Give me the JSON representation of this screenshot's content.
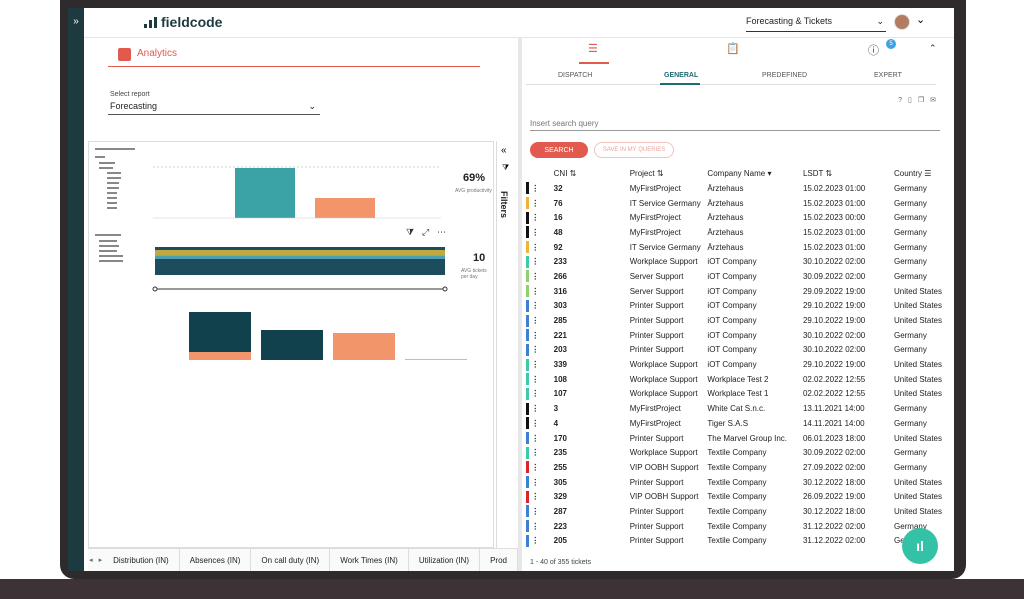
{
  "app": {
    "logo": "fieldcode",
    "rail_toggle": "»",
    "top_select": "Forecasting & Tickets"
  },
  "analytics": {
    "title": "Analytics",
    "select_label": "Select report",
    "select_value": "Forecasting",
    "kpi1": {
      "value": "69%",
      "label": "AVG productivity"
    },
    "kpi2": {
      "value": "10",
      "label": "AVG tickets per day"
    },
    "filters_label": "Filters",
    "tabs": [
      "Distribution (IN)",
      "Absences (IN)",
      "On call duty (IN)",
      "Work Times (IN)",
      "Utilization (IN)",
      "Prod"
    ]
  },
  "tickets": {
    "tabs": [
      "DISPATCH",
      "GENERAL",
      "PREDEFINED",
      "EXPERT"
    ],
    "active_tab": "GENERAL",
    "badge": "5",
    "search_placeholder": "Insert search query",
    "search_button": "SEARCH",
    "save_button": "SAVE IN MY QUERIES",
    "columns": [
      "CNI",
      "Project",
      "Company Name",
      "LSDT",
      "Country"
    ],
    "rows": [
      {
        "color": "#111111",
        "cni": "32",
        "project": "MyFirstProject",
        "company": "Ärztehaus",
        "lsdt": "15.02.2023 01:00",
        "country": "Germany"
      },
      {
        "color": "#f0b23b",
        "cni": "76",
        "project": "IT Service Germany",
        "company": "Ärztehaus",
        "lsdt": "15.02.2023 01:00",
        "country": "Germany"
      },
      {
        "color": "#111111",
        "cni": "16",
        "project": "MyFirstProject",
        "company": "Ärztehaus",
        "lsdt": "15.02.2023 00:00",
        "country": "Germany"
      },
      {
        "color": "#111111",
        "cni": "48",
        "project": "MyFirstProject",
        "company": "Ärztehaus",
        "lsdt": "15.02.2023 01:00",
        "country": "Germany"
      },
      {
        "color": "#f0b23b",
        "cni": "92",
        "project": "IT Service Germany",
        "company": "Ärztehaus",
        "lsdt": "15.02.2023 01:00",
        "country": "Germany"
      },
      {
        "color": "#3ec9a7",
        "cni": "233",
        "project": "Workplace Support",
        "company": "iOT Company",
        "lsdt": "30.10.2022 02:00",
        "country": "Germany"
      },
      {
        "color": "#8bd36b",
        "cni": "266",
        "project": "Server Support",
        "company": "iOT Company",
        "lsdt": "30.09.2022 02:00",
        "country": "Germany"
      },
      {
        "color": "#8bd36b",
        "cni": "316",
        "project": "Server Support",
        "company": "iOT Company",
        "lsdt": "29.09.2022 19:00",
        "country": "United States"
      },
      {
        "color": "#3d7fd1",
        "cni": "303",
        "project": "Printer Support",
        "company": "iOT Company",
        "lsdt": "29.10.2022 19:00",
        "country": "United States"
      },
      {
        "color": "#3d7fd1",
        "cni": "285",
        "project": "Printer Support",
        "company": "iOT Company",
        "lsdt": "29.10.2022 19:00",
        "country": "United States"
      },
      {
        "color": "#3d7fd1",
        "cni": "221",
        "project": "Printer Support",
        "company": "iOT Company",
        "lsdt": "30.10.2022 02:00",
        "country": "Germany"
      },
      {
        "color": "#3d7fd1",
        "cni": "203",
        "project": "Printer Support",
        "company": "iOT Company",
        "lsdt": "30.10.2022 02:00",
        "country": "Germany"
      },
      {
        "color": "#3ec9a7",
        "cni": "339",
        "project": "Workplace Support",
        "company": "iOT Company",
        "lsdt": "29.10.2022 19:00",
        "country": "United States"
      },
      {
        "color": "#3ec9a7",
        "cni": "108",
        "project": "Workplace Support",
        "company": "Workplace Test 2",
        "lsdt": "02.02.2022 12:55",
        "country": "United States"
      },
      {
        "color": "#3ec9a7",
        "cni": "107",
        "project": "Workplace Support",
        "company": "Workplace Test 1",
        "lsdt": "02.02.2022 12:55",
        "country": "United States"
      },
      {
        "color": "#111111",
        "cni": "3",
        "project": "MyFirstProject",
        "company": "White Cat S.n.c.",
        "lsdt": "13.11.2021 14:00",
        "country": "Germany"
      },
      {
        "color": "#111111",
        "cni": "4",
        "project": "MyFirstProject",
        "company": "Tiger S.A.S",
        "lsdt": "14.11.2021 14:00",
        "country": "Germany"
      },
      {
        "color": "#3d7fd1",
        "cni": "170",
        "project": "Printer Support",
        "company": "The Marvel Group Inc.",
        "lsdt": "06.01.2023 18:00",
        "country": "United States"
      },
      {
        "color": "#3ec9a7",
        "cni": "235",
        "project": "Workplace Support",
        "company": "Textile Company",
        "lsdt": "30.09.2022 02:00",
        "country": "Germany"
      },
      {
        "color": "#d9262d",
        "cni": "255",
        "project": "VIP OOBH Support",
        "company": "Textile Company",
        "lsdt": "27.09.2022 02:00",
        "country": "Germany"
      },
      {
        "color": "#3d7fd1",
        "cni": "305",
        "project": "Printer Support",
        "company": "Textile Company",
        "lsdt": "30.12.2022 18:00",
        "country": "United States"
      },
      {
        "color": "#d9262d",
        "cni": "329",
        "project": "VIP OOBH Support",
        "company": "Textile Company",
        "lsdt": "26.09.2022 19:00",
        "country": "United States"
      },
      {
        "color": "#3d7fd1",
        "cni": "287",
        "project": "Printer Support",
        "company": "Textile Company",
        "lsdt": "30.12.2022 18:00",
        "country": "United States"
      },
      {
        "color": "#3d7fd1",
        "cni": "223",
        "project": "Printer Support",
        "company": "Textile Company",
        "lsdt": "31.12.2022 02:00",
        "country": "Germany"
      },
      {
        "color": "#3d7fd1",
        "cni": "205",
        "project": "Printer Support",
        "company": "Textile Company",
        "lsdt": "31.12.2022 02:00",
        "country": "Germany"
      }
    ],
    "footer": "1 - 40 of 355 tickets"
  }
}
